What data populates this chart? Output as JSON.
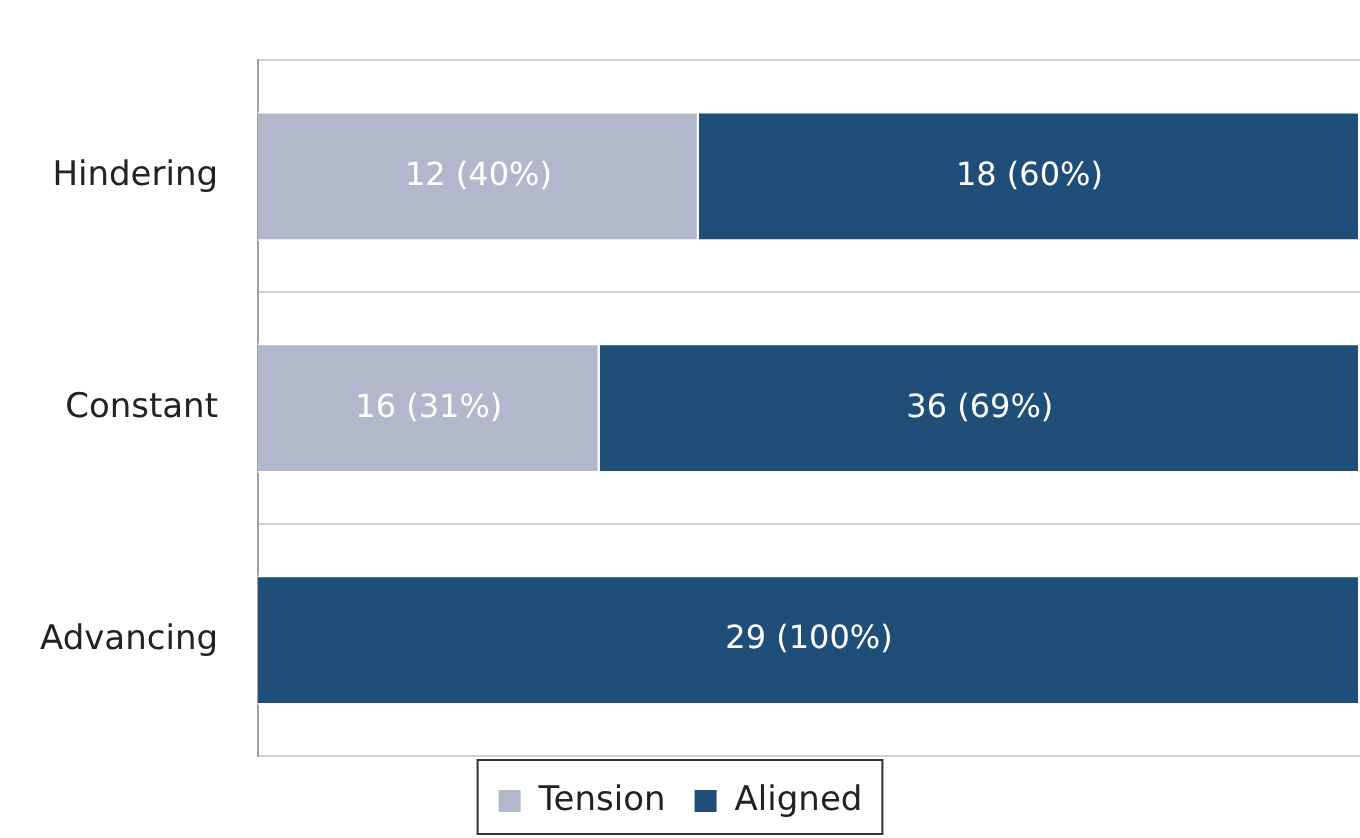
{
  "chart_data": {
    "type": "bar",
    "orientation": "horizontal",
    "stacked": true,
    "categories": [
      "Hindering",
      "Constant",
      "Advancing"
    ],
    "series": [
      {
        "name": "Tension",
        "color": "#b3b7cb",
        "values": [
          40,
          31,
          0
        ],
        "value_labels": [
          "12 (40%)",
          "16 (31%)",
          null
        ]
      },
      {
        "name": "Aligned",
        "color": "#1f4e79",
        "values": [
          60,
          69,
          100
        ],
        "value_labels": [
          "18 (60%)",
          "36 (69%)",
          "29 (100%)"
        ]
      }
    ],
    "xlim": [
      0,
      100
    ],
    "tick_labels": "y",
    "grid": "y",
    "legend": "bottom"
  }
}
